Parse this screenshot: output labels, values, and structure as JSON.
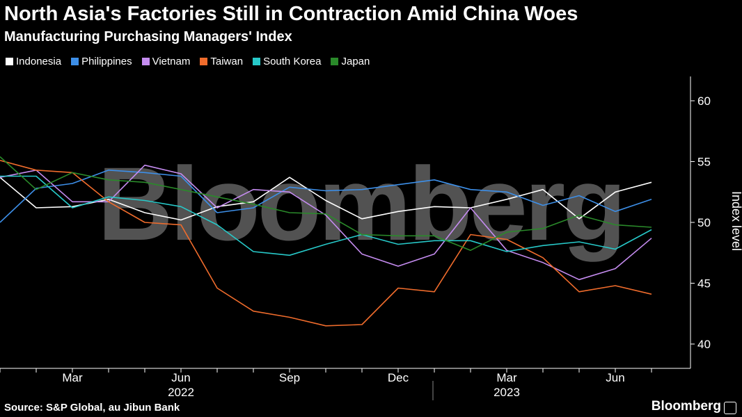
{
  "header": {
    "title": "North Asia's Factories Still in Contraction Amid China Woes",
    "subtitle": "Manufacturing Purchasing Managers' Index"
  },
  "footer": {
    "source": "Source: S&P Global, au Jibun Bank",
    "brand": "Bloomberg"
  },
  "watermark": "Bloomberg",
  "chart_data": {
    "type": "line",
    "title": "North Asia's Factories Still in Contraction Amid China Woes",
    "subtitle": "Manufacturing Purchasing Managers' Index",
    "ylabel": "Index level",
    "ylim": [
      38,
      62
    ],
    "yticks": [
      40,
      45,
      50,
      55,
      60
    ],
    "grid": false,
    "legend_position": "top-left",
    "x": [
      "2022-01",
      "2022-02",
      "2022-03",
      "2022-04",
      "2022-05",
      "2022-06",
      "2022-07",
      "2022-08",
      "2022-09",
      "2022-10",
      "2022-11",
      "2022-12",
      "2023-01",
      "2023-02",
      "2023-03",
      "2023-04",
      "2023-05",
      "2023-06",
      "2023-07"
    ],
    "x_tick_labels": [
      {
        "x": "2022-03",
        "label": "Mar"
      },
      {
        "x": "2022-06",
        "label": "Jun"
      },
      {
        "x": "2022-09",
        "label": "Sep"
      },
      {
        "x": "2022-12",
        "label": "Dec"
      },
      {
        "x": "2023-03",
        "label": "Mar"
      },
      {
        "x": "2023-06",
        "label": "Jun"
      }
    ],
    "x_year_labels": [
      {
        "x": "2022-06",
        "label": "2022"
      },
      {
        "x": "2023-03",
        "label": "2023"
      }
    ],
    "series": [
      {
        "name": "Indonesia",
        "color": "#ffffff",
        "values": [
          53.7,
          51.2,
          51.3,
          51.9,
          50.8,
          50.2,
          51.3,
          51.7,
          53.7,
          51.8,
          50.3,
          50.9,
          51.3,
          51.2,
          51.9,
          52.7,
          50.3,
          52.5,
          53.3
        ]
      },
      {
        "name": "Philippines",
        "color": "#3d8fe8",
        "values": [
          50.0,
          52.8,
          53.2,
          54.3,
          54.1,
          53.8,
          50.8,
          51.2,
          52.9,
          52.6,
          52.7,
          53.1,
          53.5,
          52.7,
          52.5,
          51.4,
          52.2,
          50.9,
          51.9
        ]
      },
      {
        "name": "Vietnam",
        "color": "#c58cf0",
        "values": [
          53.7,
          54.3,
          51.7,
          51.7,
          54.7,
          54.0,
          51.2,
          52.7,
          52.5,
          50.6,
          47.4,
          46.4,
          47.4,
          51.2,
          47.7,
          46.7,
          45.3,
          46.2,
          48.7
        ]
      },
      {
        "name": "Taiwan",
        "color": "#f06c2c",
        "values": [
          55.1,
          54.3,
          54.1,
          51.7,
          50.0,
          49.8,
          44.6,
          42.7,
          42.2,
          41.5,
          41.6,
          44.6,
          44.3,
          49.0,
          48.6,
          47.1,
          44.3,
          44.8,
          44.1
        ]
      },
      {
        "name": "South Korea",
        "color": "#27c9c9",
        "values": [
          53.8,
          53.8,
          51.2,
          52.1,
          51.8,
          51.3,
          49.8,
          47.6,
          47.3,
          48.2,
          49.0,
          48.2,
          48.5,
          48.5,
          47.6,
          48.1,
          48.4,
          47.8,
          49.4
        ]
      },
      {
        "name": "Japan",
        "color": "#2a8a2a",
        "values": [
          55.4,
          52.7,
          54.1,
          53.5,
          53.3,
          52.7,
          52.1,
          51.5,
          50.8,
          50.7,
          49.0,
          48.9,
          48.9,
          47.7,
          49.2,
          49.5,
          50.6,
          49.8,
          49.6
        ]
      }
    ]
  }
}
